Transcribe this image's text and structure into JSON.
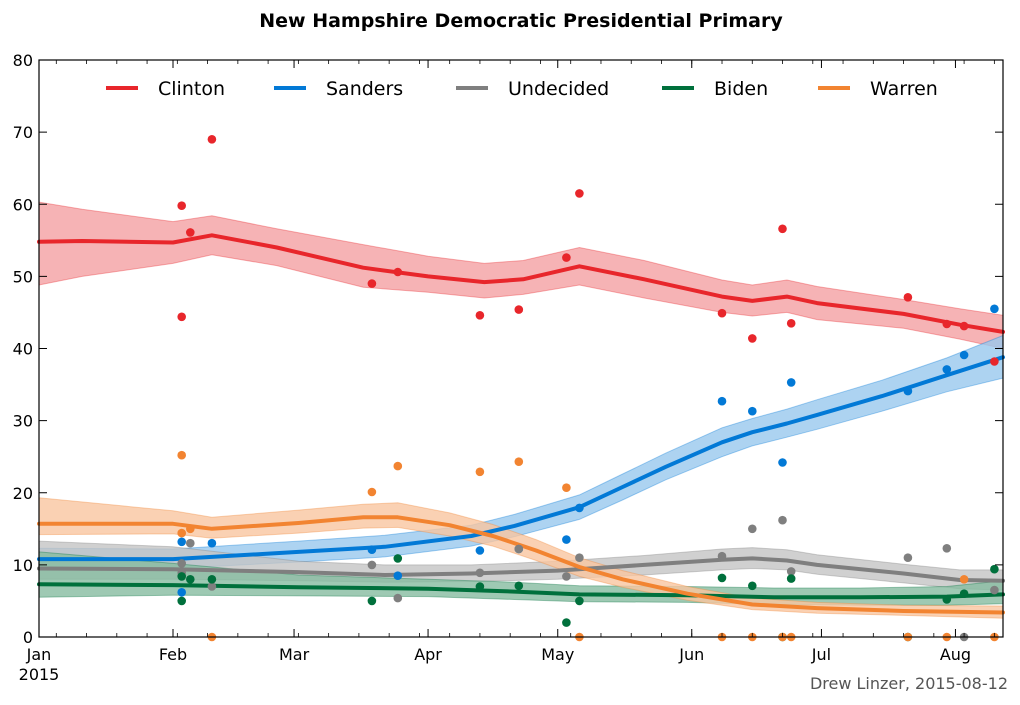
{
  "chart_data": {
    "type": "line",
    "title": "New Hampshire Democratic Presidential Primary",
    "credit": "Drew Linzer, 2015-08-12",
    "xlabel": "",
    "ylabel": "",
    "xlim": [
      0,
      223
    ],
    "ylim": [
      0,
      80
    ],
    "y_ticks": [
      0,
      10,
      20,
      30,
      40,
      50,
      60,
      70,
      80
    ],
    "x_ticks": [
      {
        "day": 0,
        "label": "Jan"
      },
      {
        "day": 31,
        "label": "Feb"
      },
      {
        "day": 59,
        "label": "Mar"
      },
      {
        "day": 90,
        "label": "Apr"
      },
      {
        "day": 120,
        "label": "May"
      },
      {
        "day": 151,
        "label": "Jun"
      },
      {
        "day": 181,
        "label": "Jul"
      },
      {
        "day": 212,
        "label": "Aug"
      }
    ],
    "year_label": "2015",
    "legend_position": "top",
    "grid": false,
    "series": [
      {
        "name": "Clinton",
        "color": "#e8262b",
        "band_color": "#f4a0a2",
        "x": [
          0,
          10,
          31,
          40,
          55,
          75,
          90,
          103,
          112,
          125,
          140,
          158,
          165,
          173,
          180,
          200,
          213,
          223
        ],
        "y": [
          54.8,
          54.9,
          54.7,
          55.7,
          54.0,
          51.2,
          50.0,
          49.2,
          49.6,
          51.4,
          49.6,
          47.2,
          46.6,
          47.2,
          46.3,
          44.8,
          43.3,
          42.3
        ],
        "lower": [
          48.8,
          50.0,
          51.8,
          53.0,
          51.5,
          48.5,
          47.8,
          47.0,
          47.5,
          48.8,
          47.0,
          45.0,
          44.5,
          45.0,
          44.0,
          42.8,
          41.3,
          40.0
        ],
        "upper": [
          60.3,
          59.3,
          57.6,
          58.4,
          56.6,
          54.4,
          52.8,
          51.8,
          52.2,
          54.0,
          52.2,
          49.5,
          48.8,
          49.5,
          48.6,
          46.8,
          45.5,
          44.6
        ],
        "points": [
          [
            33,
            59.8
          ],
          [
            33,
            44.4
          ],
          [
            35,
            56.1
          ],
          [
            40,
            69.0
          ],
          [
            77,
            49.0
          ],
          [
            83,
            50.6
          ],
          [
            102,
            44.6
          ],
          [
            111,
            45.4
          ],
          [
            122,
            52.6
          ],
          [
            125,
            61.5
          ],
          [
            158,
            44.9
          ],
          [
            165,
            41.4
          ],
          [
            172,
            56.6
          ],
          [
            174,
            43.5
          ],
          [
            201,
            47.1
          ],
          [
            210,
            43.4
          ],
          [
            214,
            43.1
          ],
          [
            221,
            38.2
          ]
        ]
      },
      {
        "name": "Sanders",
        "color": "#0279d6",
        "band_color": "#99c8ee",
        "x": [
          0,
          31,
          60,
          80,
          100,
          110,
          125,
          135,
          145,
          158,
          165,
          173,
          180,
          195,
          210,
          223
        ],
        "y": [
          10.8,
          10.8,
          11.8,
          12.5,
          14.0,
          15.4,
          18.0,
          20.8,
          23.6,
          27.0,
          28.4,
          29.6,
          30.8,
          33.4,
          36.3,
          38.8
        ],
        "lower": [
          9.5,
          9.5,
          10.4,
          11.1,
          12.6,
          13.9,
          16.3,
          19.0,
          21.8,
          25.0,
          26.5,
          27.7,
          28.8,
          31.3,
          34.0,
          35.9
        ],
        "upper": [
          12.3,
          12.2,
          13.3,
          14.1,
          15.5,
          17.0,
          19.7,
          22.6,
          25.5,
          29.0,
          30.3,
          31.6,
          32.9,
          35.6,
          38.7,
          41.8
        ],
        "points": [
          [
            33,
            13.2
          ],
          [
            33,
            6.2
          ],
          [
            40,
            13.0
          ],
          [
            77,
            12.1
          ],
          [
            83,
            8.5
          ],
          [
            102,
            12.0
          ],
          [
            111,
            12.2
          ],
          [
            122,
            13.5
          ],
          [
            125,
            17.9
          ],
          [
            158,
            32.7
          ],
          [
            165,
            31.3
          ],
          [
            172,
            24.2
          ],
          [
            174,
            35.3
          ],
          [
            201,
            34.1
          ],
          [
            210,
            37.1
          ],
          [
            214,
            39.1
          ],
          [
            221,
            45.5
          ]
        ]
      },
      {
        "name": "Undecided",
        "color": "#7f7f7f",
        "band_color": "#c4c4c4",
        "x": [
          0,
          31,
          60,
          80,
          100,
          120,
          140,
          158,
          165,
          173,
          180,
          200,
          213,
          223
        ],
        "y": [
          9.5,
          9.4,
          9.0,
          8.6,
          8.8,
          9.2,
          10.0,
          10.7,
          10.9,
          10.6,
          10.0,
          8.8,
          7.9,
          7.8
        ],
        "lower": [
          8.0,
          8.0,
          7.8,
          7.6,
          7.7,
          8.0,
          8.6,
          9.3,
          9.5,
          9.3,
          8.7,
          7.5,
          6.7,
          6.5
        ],
        "upper": [
          13.3,
          12.5,
          10.5,
          10.0,
          10.0,
          10.5,
          11.3,
          12.2,
          12.4,
          12.1,
          11.4,
          10.1,
          9.3,
          9.3
        ],
        "points": [
          [
            33,
            10.2
          ],
          [
            33,
            8.9
          ],
          [
            35,
            13.0
          ],
          [
            40,
            7.0
          ],
          [
            77,
            10.0
          ],
          [
            83,
            5.4
          ],
          [
            102,
            8.9
          ],
          [
            111,
            12.2
          ],
          [
            122,
            8.4
          ],
          [
            125,
            11.0
          ],
          [
            158,
            11.2
          ],
          [
            165,
            15.0
          ],
          [
            172,
            16.2
          ],
          [
            174,
            9.1
          ],
          [
            201,
            11.0
          ],
          [
            210,
            12.3
          ],
          [
            214,
            0.0
          ],
          [
            221,
            6.5
          ]
        ]
      },
      {
        "name": "Biden",
        "color": "#00703c",
        "band_color": "#86bca0",
        "x": [
          0,
          31,
          60,
          90,
          110,
          125,
          150,
          170,
          190,
          210,
          223
        ],
        "y": [
          7.3,
          7.2,
          6.9,
          6.7,
          6.3,
          5.9,
          5.8,
          5.5,
          5.5,
          5.6,
          5.9
        ],
        "lower": [
          5.5,
          5.8,
          5.7,
          5.6,
          5.2,
          4.9,
          4.8,
          4.5,
          4.4,
          4.4,
          4.6
        ],
        "upper": [
          11.8,
          10.2,
          8.6,
          8.0,
          7.6,
          7.1,
          7.0,
          6.8,
          6.8,
          7.0,
          7.8
        ],
        "points": [
          [
            33,
            8.4
          ],
          [
            33,
            5.0
          ],
          [
            35,
            8.0
          ],
          [
            40,
            8.0
          ],
          [
            77,
            5.0
          ],
          [
            83,
            10.9
          ],
          [
            102,
            7.0
          ],
          [
            111,
            7.1
          ],
          [
            122,
            2.0
          ],
          [
            125,
            5.0
          ],
          [
            158,
            8.2
          ],
          [
            165,
            7.1
          ],
          [
            172,
            0.0
          ],
          [
            174,
            8.1
          ],
          [
            201,
            0.0
          ],
          [
            210,
            5.2
          ],
          [
            214,
            6.0
          ],
          [
            221,
            9.4
          ]
        ]
      },
      {
        "name": "Warren",
        "color": "#f28431",
        "band_color": "#f9c5a0",
        "x": [
          0,
          31,
          40,
          60,
          75,
          83,
          95,
          105,
          115,
          125,
          135,
          150,
          165,
          180,
          200,
          223
        ],
        "y": [
          15.7,
          15.7,
          15.0,
          15.8,
          16.6,
          16.6,
          15.5,
          14.0,
          12.0,
          9.7,
          8.0,
          6.0,
          4.5,
          4.0,
          3.6,
          3.4
        ],
        "lower": [
          14.2,
          14.3,
          13.7,
          14.4,
          15.1,
          15.2,
          14.0,
          12.6,
          10.6,
          8.4,
          6.9,
          5.1,
          3.8,
          3.3,
          3.0,
          2.6
        ],
        "upper": [
          19.3,
          17.5,
          16.6,
          17.6,
          18.4,
          18.6,
          17.2,
          15.6,
          13.5,
          11.0,
          9.2,
          7.0,
          5.4,
          4.8,
          4.4,
          4.3
        ],
        "points": [
          [
            33,
            25.2
          ],
          [
            33,
            14.4
          ],
          [
            35,
            15.0
          ],
          [
            40,
            0.0
          ],
          [
            77,
            20.1
          ],
          [
            83,
            23.7
          ],
          [
            102,
            22.9
          ],
          [
            111,
            24.3
          ],
          [
            122,
            20.7
          ],
          [
            125,
            0.0
          ],
          [
            158,
            0.0
          ],
          [
            165,
            0.0
          ],
          [
            172,
            0.0
          ],
          [
            174,
            0.0
          ],
          [
            201,
            0.0
          ],
          [
            210,
            0.0
          ],
          [
            214,
            8.0
          ],
          [
            221,
            0.0
          ]
        ]
      }
    ]
  }
}
